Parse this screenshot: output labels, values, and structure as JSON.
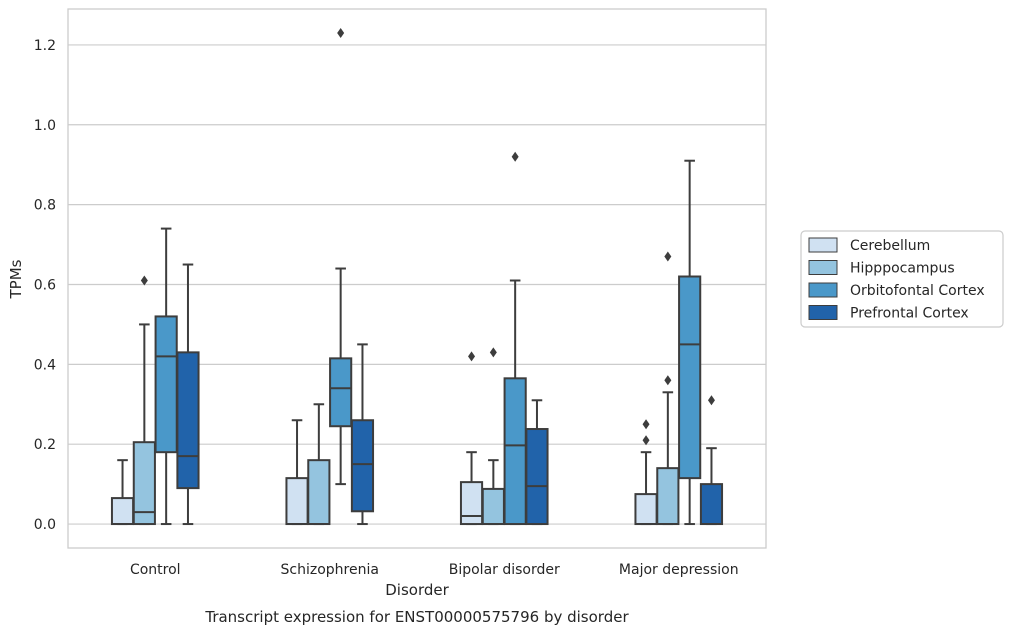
{
  "chart_data": {
    "type": "boxplot",
    "title": "",
    "caption": "Transcript expression for ENST00000575796 by disorder",
    "xlabel": "Disorder",
    "ylabel": "TPMs",
    "ylim": [
      -0.06,
      1.29
    ],
    "yticks": [
      "0.0",
      "0.2",
      "0.4",
      "0.6",
      "0.8",
      "1.0",
      "1.2"
    ],
    "categories": [
      "Control",
      "Schizophrenia",
      "Bipolar disorder",
      "Major depression"
    ],
    "grid": "horizontal",
    "legend_position": "right",
    "series": [
      {
        "name": "Cerebellum",
        "color": "#d0e1f2",
        "boxes": [
          {
            "whislo": 0.0,
            "q1": 0.0,
            "med": 0.0,
            "q3": 0.065,
            "whishi": 0.16,
            "fliers": []
          },
          {
            "whislo": 0.0,
            "q1": 0.0,
            "med": 0.0,
            "q3": 0.115,
            "whishi": 0.26,
            "fliers": []
          },
          {
            "whislo": 0.0,
            "q1": 0.0,
            "med": 0.02,
            "q3": 0.105,
            "whishi": 0.18,
            "fliers": [
              0.42
            ]
          },
          {
            "whislo": 0.0,
            "q1": 0.0,
            "med": 0.0,
            "q3": 0.075,
            "whishi": 0.18,
            "fliers": [
              0.21,
              0.25
            ]
          }
        ]
      },
      {
        "name": "Hipppocampus",
        "color": "#94c4df",
        "boxes": [
          {
            "whislo": 0.0,
            "q1": 0.0,
            "med": 0.03,
            "q3": 0.205,
            "whishi": 0.5,
            "fliers": [
              0.61
            ]
          },
          {
            "whislo": 0.0,
            "q1": 0.0,
            "med": 0.0,
            "q3": 0.16,
            "whishi": 0.3,
            "fliers": []
          },
          {
            "whislo": 0.0,
            "q1": 0.0,
            "med": 0.0,
            "q3": 0.088,
            "whishi": 0.16,
            "fliers": [
              0.43
            ]
          },
          {
            "whislo": 0.0,
            "q1": 0.0,
            "med": 0.0,
            "q3": 0.14,
            "whishi": 0.33,
            "fliers": [
              0.36,
              0.67
            ]
          }
        ]
      },
      {
        "name": "Orbitofontal Cortex",
        "color": "#4a98c9",
        "boxes": [
          {
            "whislo": 0.0,
            "q1": 0.18,
            "med": 0.42,
            "q3": 0.52,
            "whishi": 0.74,
            "fliers": []
          },
          {
            "whislo": 0.1,
            "q1": 0.245,
            "med": 0.34,
            "q3": 0.415,
            "whishi": 0.64,
            "fliers": [
              1.23
            ]
          },
          {
            "whislo": 0.0,
            "q1": 0.0,
            "med": 0.197,
            "q3": 0.365,
            "whishi": 0.61,
            "fliers": [
              0.92
            ]
          },
          {
            "whislo": 0.0,
            "q1": 0.115,
            "med": 0.45,
            "q3": 0.62,
            "whishi": 0.91,
            "fliers": []
          }
        ]
      },
      {
        "name": "Prefrontal Cortex",
        "color": "#2163aa",
        "boxes": [
          {
            "whislo": 0.0,
            "q1": 0.09,
            "med": 0.17,
            "q3": 0.43,
            "whishi": 0.65,
            "fliers": []
          },
          {
            "whislo": 0.0,
            "q1": 0.032,
            "med": 0.15,
            "q3": 0.26,
            "whishi": 0.45,
            "fliers": []
          },
          {
            "whislo": 0.0,
            "q1": 0.0,
            "med": 0.095,
            "q3": 0.238,
            "whishi": 0.31,
            "fliers": []
          },
          {
            "whislo": 0.0,
            "q1": 0.0,
            "med": 0.0,
            "q3": 0.1,
            "whishi": 0.19,
            "fliers": [
              0.31
            ]
          }
        ]
      }
    ]
  }
}
